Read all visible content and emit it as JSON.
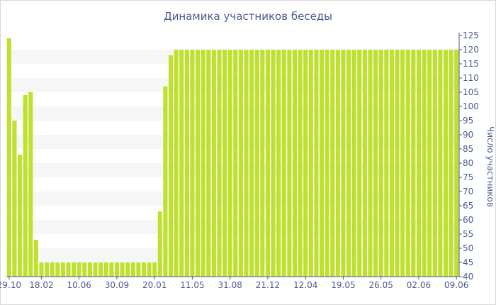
{
  "chart_data": {
    "type": "bar",
    "title": "Динамика участников беседы",
    "xlabel": "",
    "ylabel": "Число участников",
    "ylim": [
      40,
      125
    ],
    "y_ticks": [
      40,
      45,
      50,
      55,
      60,
      65,
      70,
      75,
      80,
      85,
      90,
      95,
      100,
      105,
      110,
      115,
      120,
      125
    ],
    "y_axis_side": "right",
    "x_tick_labels": [
      "29.10",
      "18.02",
      "10.06",
      "30.09",
      "20.01",
      "11.05",
      "31.08",
      "21.12",
      "12.04",
      "19.05",
      "26.05",
      "02.06",
      "09.06"
    ],
    "x_tick_bar_index": [
      0,
      6,
      13,
      20,
      27,
      34,
      41,
      48,
      55,
      62,
      69,
      76,
      83
    ],
    "bar_color": "#bfe02e",
    "grid": "alternating horizontal bands",
    "values": [
      124,
      95,
      83,
      104,
      105,
      53,
      45,
      45,
      45,
      45,
      45,
      45,
      45,
      45,
      45,
      45,
      45,
      45,
      45,
      45,
      45,
      45,
      45,
      45,
      45,
      45,
      45,
      45,
      63,
      107,
      118,
      120,
      120,
      120,
      120,
      120,
      120,
      120,
      120,
      120,
      120,
      120,
      120,
      120,
      120,
      120,
      120,
      120,
      120,
      120,
      120,
      120,
      120,
      120,
      120,
      120,
      120,
      120,
      120,
      120,
      120,
      120,
      120,
      120,
      120,
      120,
      120,
      120,
      120,
      120,
      120,
      120,
      120,
      120,
      120,
      120,
      120,
      120,
      120,
      120,
      120,
      120,
      120,
      120
    ]
  }
}
